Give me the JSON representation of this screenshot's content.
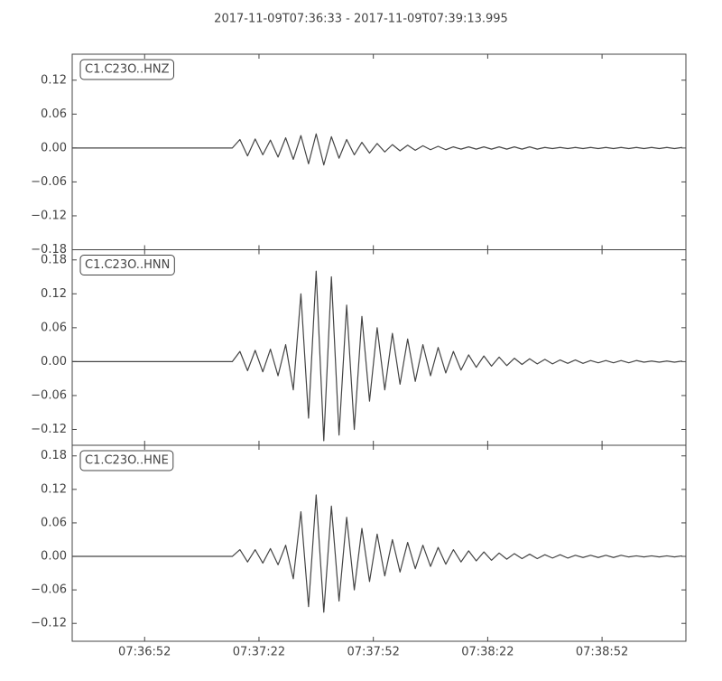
{
  "title": "2017-11-09T07:36:33  -  2017-11-09T07:39:13.995",
  "chart_data": [
    {
      "type": "line",
      "label": "C1.C23O..HNZ",
      "color": "#444444",
      "x": [
        "07:36:33",
        "07:36:35",
        "07:36:37",
        "07:36:39",
        "07:36:41",
        "07:36:43",
        "07:36:45",
        "07:36:47",
        "07:36:49",
        "07:36:51",
        "07:36:53",
        "07:36:55",
        "07:36:57",
        "07:36:59",
        "07:37:01",
        "07:37:03",
        "07:37:05",
        "07:37:07",
        "07:37:09",
        "07:37:11",
        "07:37:13",
        "07:37:15",
        "07:37:17",
        "07:37:19",
        "07:37:21",
        "07:37:23",
        "07:37:25",
        "07:37:27",
        "07:37:29",
        "07:37:31",
        "07:37:33",
        "07:37:35",
        "07:37:37",
        "07:37:39",
        "07:37:41",
        "07:37:43",
        "07:37:45",
        "07:37:47",
        "07:37:49",
        "07:37:51",
        "07:37:53",
        "07:37:55",
        "07:37:57",
        "07:37:59",
        "07:38:01",
        "07:38:03",
        "07:38:05",
        "07:38:07",
        "07:38:09",
        "07:38:11",
        "07:38:13",
        "07:38:15",
        "07:38:17",
        "07:38:19",
        "07:38:21",
        "07:38:23",
        "07:38:25",
        "07:38:27",
        "07:38:29",
        "07:38:31",
        "07:38:33",
        "07:38:35",
        "07:38:37",
        "07:38:39",
        "07:38:41",
        "07:38:43",
        "07:38:45",
        "07:38:47",
        "07:38:49",
        "07:38:51",
        "07:38:53",
        "07:38:55",
        "07:38:57",
        "07:38:59",
        "07:39:01",
        "07:39:03",
        "07:39:05",
        "07:39:07",
        "07:39:09",
        "07:39:11",
        "07:39:13"
      ],
      "values": [
        0,
        0,
        0,
        0,
        0,
        0,
        0,
        0,
        0,
        0,
        0,
        0,
        0,
        0,
        0,
        0,
        0,
        0,
        0,
        0,
        0,
        0,
        0.015,
        -0.014,
        0.016,
        -0.012,
        0.014,
        -0.016,
        0.018,
        -0.02,
        0.022,
        -0.028,
        0.025,
        -0.03,
        0.02,
        -0.018,
        0.015,
        -0.012,
        0.01,
        -0.009,
        0.008,
        -0.007,
        0.006,
        -0.005,
        0.005,
        -0.004,
        0.004,
        -0.003,
        0.003,
        -0.003,
        0.002,
        -0.002,
        0.002,
        -0.002,
        0.002,
        -0.002,
        0.002,
        -0.002,
        0.002,
        -0.002,
        0.002,
        -0.002,
        0.001,
        -0.001,
        0.001,
        -0.001,
        0.001,
        -0.001,
        0.001,
        -0.001,
        0.001,
        -0.001,
        0.001,
        -0.001,
        0.001,
        -0.001,
        0.001,
        -0.001,
        0.001,
        -0.001,
        0.001
      ],
      "xlim": [
        "07:36:33",
        "07:39:13.995"
      ],
      "xticks": [
        "07:36:52",
        "07:37:22",
        "07:37:52",
        "07:38:22",
        "07:38:52"
      ],
      "ylim": [
        -0.18,
        0.166
      ],
      "yticks": [
        {
          "value": -0.18,
          "label": "−0.18"
        },
        {
          "value": -0.12,
          "label": "−0.12"
        },
        {
          "value": -0.06,
          "label": "−0.06"
        },
        {
          "value": 0,
          "label": "0.00"
        },
        0.06,
        0.12
      ]
    },
    {
      "type": "line",
      "label": "C1.C23O..HNN",
      "color": "#444444",
      "x": [
        "07:36:33",
        "07:36:35",
        "07:36:37",
        "07:36:39",
        "07:36:41",
        "07:36:43",
        "07:36:45",
        "07:36:47",
        "07:36:49",
        "07:36:51",
        "07:36:53",
        "07:36:55",
        "07:36:57",
        "07:36:59",
        "07:37:01",
        "07:37:03",
        "07:37:05",
        "07:37:07",
        "07:37:09",
        "07:37:11",
        "07:37:13",
        "07:37:15",
        "07:37:17",
        "07:37:19",
        "07:37:21",
        "07:37:23",
        "07:37:25",
        "07:37:27",
        "07:37:29",
        "07:37:31",
        "07:37:33",
        "07:37:35",
        "07:37:37",
        "07:37:39",
        "07:37:41",
        "07:37:43",
        "07:37:45",
        "07:37:47",
        "07:37:49",
        "07:37:51",
        "07:37:53",
        "07:37:55",
        "07:37:57",
        "07:37:59",
        "07:38:01",
        "07:38:03",
        "07:38:05",
        "07:38:07",
        "07:38:09",
        "07:38:11",
        "07:38:13",
        "07:38:15",
        "07:38:17",
        "07:38:19",
        "07:38:21",
        "07:38:23",
        "07:38:25",
        "07:38:27",
        "07:38:29",
        "07:38:31",
        "07:38:33",
        "07:38:35",
        "07:38:37",
        "07:38:39",
        "07:38:41",
        "07:38:43",
        "07:38:45",
        "07:38:47",
        "07:38:49",
        "07:38:51",
        "07:38:53",
        "07:38:55",
        "07:38:57",
        "07:38:59",
        "07:39:01",
        "07:39:03",
        "07:39:05",
        "07:39:07",
        "07:39:09",
        "07:39:11",
        "07:39:13"
      ],
      "values": [
        0,
        0,
        0,
        0,
        0,
        0,
        0,
        0,
        0,
        0,
        0,
        0,
        0,
        0,
        0,
        0,
        0,
        0,
        0,
        0,
        0,
        0,
        0.018,
        -0.016,
        0.02,
        -0.018,
        0.022,
        -0.025,
        0.03,
        -0.05,
        0.12,
        -0.1,
        0.16,
        -0.14,
        0.15,
        -0.13,
        0.1,
        -0.12,
        0.08,
        -0.07,
        0.06,
        -0.05,
        0.05,
        -0.04,
        0.04,
        -0.035,
        0.03,
        -0.025,
        0.025,
        -0.02,
        0.018,
        -0.015,
        0.012,
        -0.01,
        0.01,
        -0.008,
        0.008,
        -0.007,
        0.006,
        -0.005,
        0.005,
        -0.004,
        0.004,
        -0.004,
        0.003,
        -0.003,
        0.003,
        -0.003,
        0.002,
        -0.002,
        0.002,
        -0.002,
        0.002,
        -0.002,
        0.002,
        -0.001,
        0.001,
        -0.001,
        0.001,
        -0.001,
        0.001
      ],
      "xlim": [
        "07:36:33",
        "07:39:13.995"
      ],
      "xticks": [
        "07:36:52",
        "07:37:22",
        "07:37:52",
        "07:38:22",
        "07:38:52"
      ],
      "ylim": [
        -0.148,
        0.198
      ],
      "yticks": [
        {
          "value": -0.12,
          "label": "−0.12"
        },
        {
          "value": -0.06,
          "label": "−0.06"
        },
        {
          "value": 0,
          "label": "0.00"
        },
        0.06,
        0.12,
        0.18
      ]
    },
    {
      "type": "line",
      "label": "C1.C23O..HNE",
      "color": "#444444",
      "x": [
        "07:36:33",
        "07:36:35",
        "07:36:37",
        "07:36:39",
        "07:36:41",
        "07:36:43",
        "07:36:45",
        "07:36:47",
        "07:36:49",
        "07:36:51",
        "07:36:53",
        "07:36:55",
        "07:36:57",
        "07:36:59",
        "07:37:01",
        "07:37:03",
        "07:37:05",
        "07:37:07",
        "07:37:09",
        "07:37:11",
        "07:37:13",
        "07:37:15",
        "07:37:17",
        "07:37:19",
        "07:37:21",
        "07:37:23",
        "07:37:25",
        "07:37:27",
        "07:37:29",
        "07:37:31",
        "07:37:33",
        "07:37:35",
        "07:37:37",
        "07:37:39",
        "07:37:41",
        "07:37:43",
        "07:37:45",
        "07:37:47",
        "07:37:49",
        "07:37:51",
        "07:37:53",
        "07:37:55",
        "07:37:57",
        "07:37:59",
        "07:38:01",
        "07:38:03",
        "07:38:05",
        "07:38:07",
        "07:38:09",
        "07:38:11",
        "07:38:13",
        "07:38:15",
        "07:38:17",
        "07:38:19",
        "07:38:21",
        "07:38:23",
        "07:38:25",
        "07:38:27",
        "07:38:29",
        "07:38:31",
        "07:38:33",
        "07:38:35",
        "07:38:37",
        "07:38:39",
        "07:38:41",
        "07:38:43",
        "07:38:45",
        "07:38:47",
        "07:38:49",
        "07:38:51",
        "07:38:53",
        "07:38:55",
        "07:38:57",
        "07:38:59",
        "07:39:01",
        "07:39:03",
        "07:39:05",
        "07:39:07",
        "07:39:09",
        "07:39:11",
        "07:39:13"
      ],
      "values": [
        0,
        0,
        0,
        0,
        0,
        0,
        0,
        0,
        0,
        0,
        0,
        0,
        0,
        0,
        0,
        0,
        0,
        0,
        0,
        0,
        0,
        0,
        0.012,
        -0.01,
        0.012,
        -0.012,
        0.014,
        -0.015,
        0.02,
        -0.04,
        0.08,
        -0.09,
        0.11,
        -0.1,
        0.09,
        -0.08,
        0.07,
        -0.06,
        0.05,
        -0.045,
        0.04,
        -0.035,
        0.03,
        -0.028,
        0.025,
        -0.022,
        0.02,
        -0.018,
        0.016,
        -0.014,
        0.012,
        -0.01,
        0.01,
        -0.008,
        0.008,
        -0.007,
        0.006,
        -0.005,
        0.005,
        -0.004,
        0.004,
        -0.004,
        0.003,
        -0.003,
        0.003,
        -0.003,
        0.002,
        -0.002,
        0.002,
        -0.002,
        0.002,
        -0.002,
        0.002,
        -0.001,
        0.001,
        -0.001,
        0.001,
        -0.001,
        0.001,
        -0.001,
        0.001
      ],
      "xlim": [
        "07:36:33",
        "07:39:13.995"
      ],
      "xticks": [
        "07:36:52",
        "07:37:22",
        "07:37:52",
        "07:38:22",
        "07:38:52"
      ],
      "ylim": [
        -0.152,
        0.199
      ],
      "yticks": [
        {
          "value": -0.12,
          "label": "−0.12"
        },
        {
          "value": -0.06,
          "label": "−0.06"
        },
        {
          "value": 0,
          "label": "0.00"
        },
        0.06,
        0.12,
        0.18
      ]
    }
  ]
}
